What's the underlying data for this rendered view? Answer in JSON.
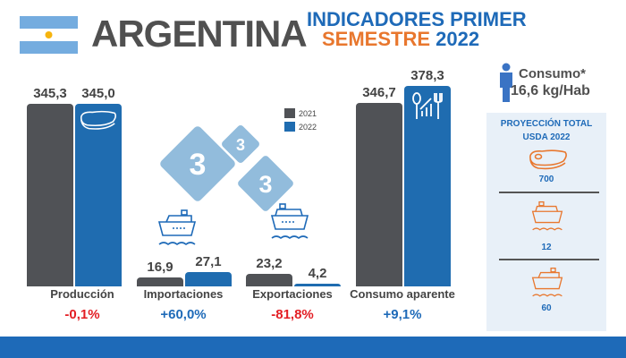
{
  "header": {
    "country": "ARGENTINA",
    "subtitle_line1": "INDICADORES PRIMER",
    "subtitle_semestre": "SEMESTRE",
    "subtitle_year": "2022"
  },
  "consumo": {
    "label": "Consumo*",
    "value": "16,6 kg/Hab"
  },
  "projection": {
    "title_line1": "PROYECCIÓN TOTAL",
    "title_line2": "USDA 2022",
    "items": [
      {
        "icon": "steak-icon",
        "value": "700"
      },
      {
        "icon": "ship-icon",
        "value": "12"
      },
      {
        "icon": "ship-icon",
        "value": "60"
      }
    ]
  },
  "colors": {
    "2021": "#505256",
    "2022": "#1f6cb0",
    "negative": "#e31e24",
    "positive": "#1e6ab8",
    "accent": "#e8772e"
  },
  "chart_data": {
    "type": "bar",
    "categories": [
      "Producción",
      "Importaciones",
      "Exportaciones",
      "Consumo aparente"
    ],
    "series": [
      {
        "name": "2021",
        "values": [
          345.3,
          16.9,
          23.2,
          346.7
        ],
        "labels": [
          "345,3",
          "16,9",
          "23,2",
          "346,7"
        ]
      },
      {
        "name": "2022",
        "values": [
          345.0,
          27.1,
          4.2,
          378.3
        ],
        "labels": [
          "345,0",
          "27,1",
          "4,2",
          "378,3"
        ]
      }
    ],
    "changes": [
      "-0,1%",
      "+60,0%",
      "-81,8%",
      "+9,1%"
    ],
    "legend": [
      "2021",
      "2022"
    ],
    "legend_placement": "top-center"
  }
}
